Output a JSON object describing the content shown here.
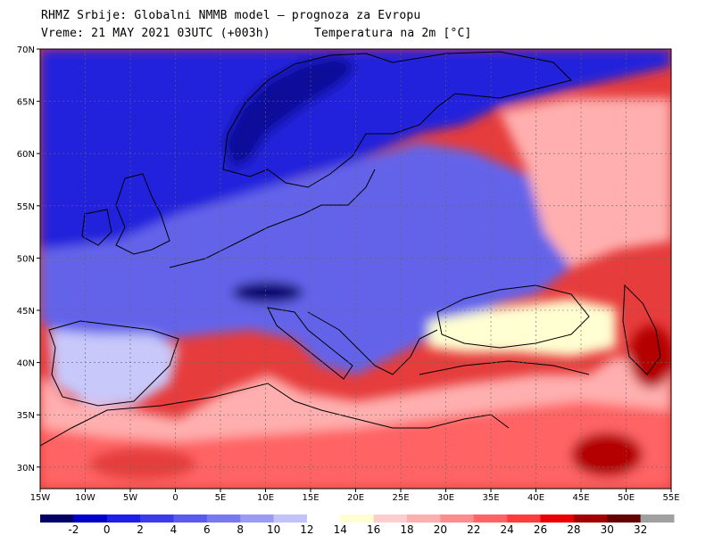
{
  "header": {
    "line1": "RHMZ Srbije: Globalni NMMB model — prognoza za Evropu",
    "line2_left": "Vreme: 21 MAY 2021 03UTC (+003h)",
    "line2_right": "Temperatura na 2m [°C]"
  },
  "axes": {
    "lat_labels": [
      "70N",
      "65N",
      "60N",
      "55N",
      "50N",
      "45N",
      "40N",
      "35N",
      "30N"
    ],
    "lon_labels": [
      "15W",
      "10W",
      "5W",
      "0",
      "5E",
      "10E",
      "15E",
      "20E",
      "25E",
      "30E",
      "35E",
      "40E",
      "45E",
      "50E",
      "55E"
    ]
  },
  "colorbar": {
    "labels": [
      "-2",
      "0",
      "2",
      "4",
      "6",
      "8",
      "10",
      "12",
      "14",
      "16",
      "18",
      "20",
      "22",
      "24",
      "26",
      "28",
      "30",
      "32"
    ],
    "colors": [
      "#000066",
      "#0000c8",
      "#1e1ee6",
      "#3c3ce6",
      "#5a5aeb",
      "#7878f0",
      "#9b9bf5",
      "#c3c3fa",
      "#ffffff",
      "#ffffd2",
      "#ffcdcd",
      "#ffafaf",
      "#ff8c8c",
      "#ff6464",
      "#ff3c3c",
      "#eb0000",
      "#a00000",
      "#640000",
      "#a0a0a0"
    ]
  },
  "map": {
    "colors": {
      "sea": "#e63c3c",
      "north": "#2424dc",
      "scandinavia": "#0a0a9a",
      "mid": "#6464ea",
      "alps": "#000070",
      "iberia": "#c8c8fa",
      "mediterranean": "#ffafaf",
      "africa": "#ff6464",
      "eastsea": "#ffffd2",
      "hot": "#b40000",
      "coast": "#000000"
    }
  }
}
